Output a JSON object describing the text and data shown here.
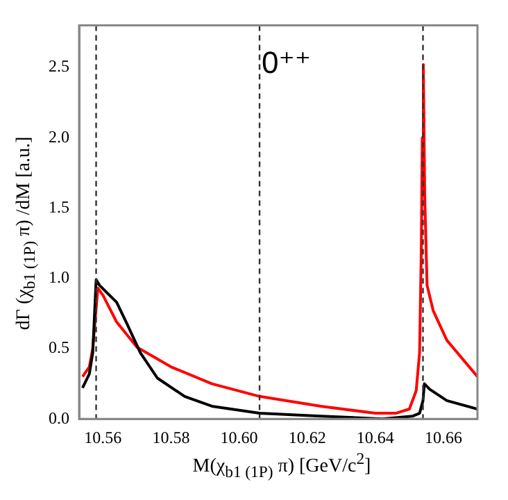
{
  "chart_data": {
    "type": "line",
    "xlabel": "M(χ$_{b1 (1P)}$ π)  [GeV/c$^{2}$]",
    "ylabel": "dΓ (χ$_{b1 (1P)}$ π) /dM   [a.u.]",
    "annotations": [
      "0⁺⁺"
    ],
    "xlim": [
      10.553,
      10.67
    ],
    "xticks": [
      {
        "value": 10.56,
        "label": "10.56"
      },
      {
        "value": 10.58,
        "label": "10.58"
      },
      {
        "value": 10.6,
        "label": "10.60"
      },
      {
        "value": 10.62,
        "label": "10.62"
      },
      {
        "value": 10.64,
        "label": "10.64"
      },
      {
        "value": 10.66,
        "label": "10.66"
      }
    ],
    "ylim": [
      0,
      2.8
    ],
    "yticks": [
      {
        "value": 0,
        "label": "0.0"
      },
      0.5,
      {
        "value": 1,
        "label": "1.0"
      },
      1.5,
      {
        "value": 2,
        "label": "2.0"
      },
      2.5
    ],
    "grid": false,
    "legend": false,
    "marker": "none",
    "line_style": "solid",
    "ref_lines": [
      {
        "axis": "x",
        "value": 10.558,
        "line_style": "dashed",
        "color": "#333333"
      },
      {
        "axis": "x",
        "value": 10.606,
        "line_style": "dashed",
        "color": "#333333"
      },
      {
        "axis": "x",
        "value": 10.654,
        "line_style": "dashed",
        "color": "#333333"
      }
    ],
    "series": [
      {
        "color": "#000000",
        "x": [
          10.554,
          10.556,
          10.557,
          10.558,
          10.559,
          10.564,
          10.567,
          10.571,
          10.576,
          10.584,
          10.592,
          10.606,
          10.624,
          10.642,
          10.651,
          10.653,
          10.654,
          10.6544,
          10.656,
          10.661,
          10.67
        ],
        "values": [
          0.22,
          0.32,
          0.47,
          0.99,
          0.95,
          0.83,
          0.68,
          0.47,
          0.29,
          0.16,
          0.09,
          0.04,
          0.02,
          0.0,
          0.02,
          0.04,
          0.13,
          0.25,
          0.21,
          0.13,
          0.07
        ]
      },
      {
        "color": "#ff0000",
        "x": [
          10.554,
          10.556,
          10.557,
          10.5585,
          10.56,
          10.564,
          10.57,
          10.58,
          10.592,
          10.606,
          10.624,
          10.64,
          10.646,
          10.65,
          10.652,
          10.653,
          10.6535,
          10.6538,
          10.6541,
          10.6545,
          10.6552,
          10.657,
          10.661,
          10.67
        ],
        "values": [
          0.3,
          0.37,
          0.5,
          0.93,
          0.88,
          0.69,
          0.51,
          0.37,
          0.25,
          0.16,
          0.09,
          0.04,
          0.04,
          0.07,
          0.2,
          0.47,
          1.2,
          2.0,
          2.52,
          1.6,
          0.95,
          0.77,
          0.56,
          0.3
        ]
      }
    ]
  }
}
